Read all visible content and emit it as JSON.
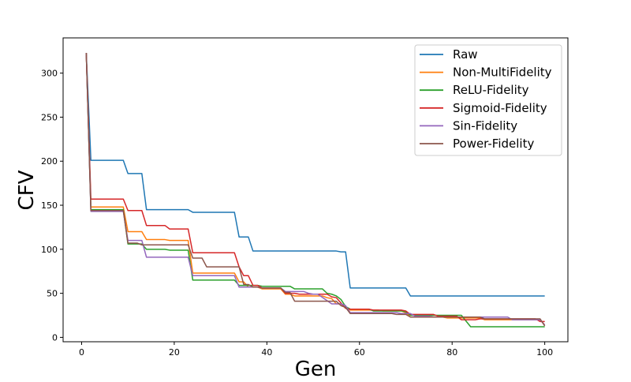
{
  "chart_data": {
    "type": "line",
    "xlabel": "Gen",
    "ylabel": "CFV",
    "xlim": [
      -4,
      105
    ],
    "ylim": [
      -5,
      340
    ],
    "xticks": [
      0,
      20,
      40,
      60,
      80,
      100
    ],
    "yticks": [
      0,
      50,
      100,
      150,
      200,
      250,
      300
    ],
    "grid": false,
    "legend_position": "top-right",
    "series": [
      {
        "name": "Raw",
        "color": "#1f77b4",
        "points": [
          [
            1,
            323
          ],
          [
            2,
            201
          ],
          [
            9,
            201
          ],
          [
            10,
            186
          ],
          [
            13,
            186
          ],
          [
            14,
            145
          ],
          [
            23,
            145
          ],
          [
            24,
            142
          ],
          [
            33,
            142
          ],
          [
            34,
            114
          ],
          [
            36,
            114
          ],
          [
            37,
            98
          ],
          [
            55,
            98
          ],
          [
            56,
            97
          ],
          [
            57,
            97
          ],
          [
            58,
            56
          ],
          [
            70,
            56
          ],
          [
            71,
            47
          ],
          [
            100,
            47
          ]
        ]
      },
      {
        "name": "Non-MultiFidelity",
        "color": "#ff7f0e",
        "points": [
          [
            1,
            323
          ],
          [
            2,
            148
          ],
          [
            9,
            148
          ],
          [
            10,
            120
          ],
          [
            13,
            120
          ],
          [
            14,
            111
          ],
          [
            18,
            111
          ],
          [
            19,
            110
          ],
          [
            23,
            110
          ],
          [
            24,
            73
          ],
          [
            33,
            73
          ],
          [
            34,
            63
          ],
          [
            35,
            63
          ],
          [
            36,
            57
          ],
          [
            38,
            57
          ],
          [
            39,
            55
          ],
          [
            43,
            55
          ],
          [
            44,
            49
          ],
          [
            45,
            49
          ],
          [
            46,
            47
          ],
          [
            52,
            47
          ],
          [
            53,
            45
          ],
          [
            54,
            44
          ],
          [
            55,
            38
          ],
          [
            56,
            38
          ],
          [
            57,
            33
          ],
          [
            58,
            31
          ],
          [
            64,
            31
          ],
          [
            65,
            30
          ],
          [
            69,
            30
          ],
          [
            70,
            28
          ],
          [
            71,
            23
          ],
          [
            78,
            23
          ],
          [
            79,
            22
          ],
          [
            86,
            22
          ],
          [
            87,
            20
          ],
          [
            99,
            20
          ],
          [
            100,
            14
          ]
        ]
      },
      {
        "name": "ReLU-Fidelity",
        "color": "#2ca02c",
        "points": [
          [
            1,
            323
          ],
          [
            2,
            145
          ],
          [
            9,
            145
          ],
          [
            10,
            106
          ],
          [
            13,
            106
          ],
          [
            14,
            100
          ],
          [
            18,
            100
          ],
          [
            19,
            99
          ],
          [
            23,
            99
          ],
          [
            24,
            65
          ],
          [
            33,
            65
          ],
          [
            34,
            59
          ],
          [
            38,
            59
          ],
          [
            39,
            58
          ],
          [
            45,
            58
          ],
          [
            46,
            55
          ],
          [
            52,
            55
          ],
          [
            53,
            50
          ],
          [
            54,
            49
          ],
          [
            55,
            47
          ],
          [
            56,
            43
          ],
          [
            57,
            35
          ],
          [
            58,
            32
          ],
          [
            62,
            32
          ],
          [
            63,
            30
          ],
          [
            69,
            30
          ],
          [
            70,
            29
          ],
          [
            71,
            25
          ],
          [
            82,
            25
          ],
          [
            84,
            12
          ],
          [
            100,
            12
          ]
        ]
      },
      {
        "name": "Sigmoid-Fidelity",
        "color": "#d62728",
        "points": [
          [
            1,
            323
          ],
          [
            2,
            157
          ],
          [
            9,
            157
          ],
          [
            10,
            144
          ],
          [
            13,
            144
          ],
          [
            14,
            127
          ],
          [
            18,
            127
          ],
          [
            19,
            123
          ],
          [
            23,
            123
          ],
          [
            24,
            96
          ],
          [
            33,
            96
          ],
          [
            34,
            80
          ],
          [
            35,
            70
          ],
          [
            36,
            70
          ],
          [
            37,
            59
          ],
          [
            38,
            59
          ],
          [
            39,
            56
          ],
          [
            43,
            56
          ],
          [
            44,
            50
          ],
          [
            46,
            50
          ],
          [
            47,
            49
          ],
          [
            53,
            49
          ],
          [
            54,
            46
          ],
          [
            55,
            45
          ],
          [
            56,
            39
          ],
          [
            57,
            33
          ],
          [
            58,
            32
          ],
          [
            62,
            32
          ],
          [
            63,
            31
          ],
          [
            69,
            31
          ],
          [
            70,
            30
          ],
          [
            71,
            26
          ],
          [
            76,
            26
          ],
          [
            77,
            24
          ],
          [
            81,
            24
          ],
          [
            82,
            20
          ],
          [
            85,
            20
          ],
          [
            86,
            21
          ],
          [
            98,
            21
          ],
          [
            99,
            18
          ],
          [
            100,
            18
          ]
        ]
      },
      {
        "name": "Sin-Fidelity",
        "color": "#9467bd",
        "points": [
          [
            1,
            323
          ],
          [
            2,
            143
          ],
          [
            9,
            143
          ],
          [
            10,
            110
          ],
          [
            13,
            110
          ],
          [
            14,
            91
          ],
          [
            23,
            91
          ],
          [
            24,
            70
          ],
          [
            33,
            70
          ],
          [
            34,
            57
          ],
          [
            38,
            57
          ],
          [
            39,
            56
          ],
          [
            43,
            56
          ],
          [
            44,
            52
          ],
          [
            48,
            52
          ],
          [
            49,
            50
          ],
          [
            50,
            49
          ],
          [
            51,
            49
          ],
          [
            54,
            38
          ],
          [
            56,
            38
          ],
          [
            57,
            36
          ],
          [
            58,
            28
          ],
          [
            68,
            28
          ],
          [
            69,
            27
          ],
          [
            71,
            27
          ],
          [
            72,
            24
          ],
          [
            75,
            24
          ],
          [
            76,
            23
          ],
          [
            92,
            23
          ],
          [
            93,
            20
          ],
          [
            99,
            20
          ],
          [
            100,
            14
          ]
        ]
      },
      {
        "name": "Power-Fidelity",
        "color": "#8c564b",
        "points": [
          [
            1,
            323
          ],
          [
            2,
            144
          ],
          [
            9,
            144
          ],
          [
            10,
            107
          ],
          [
            12,
            107
          ],
          [
            13,
            105
          ],
          [
            23,
            105
          ],
          [
            24,
            90
          ],
          [
            26,
            90
          ],
          [
            27,
            80
          ],
          [
            34,
            80
          ],
          [
            35,
            60
          ],
          [
            36,
            60
          ],
          [
            37,
            57
          ],
          [
            38,
            57
          ],
          [
            39,
            56
          ],
          [
            43,
            56
          ],
          [
            44,
            51
          ],
          [
            45,
            51
          ],
          [
            46,
            41
          ],
          [
            55,
            41
          ],
          [
            56,
            36
          ],
          [
            57,
            34
          ],
          [
            58,
            27
          ],
          [
            67,
            27
          ],
          [
            68,
            26
          ],
          [
            70,
            26
          ],
          [
            71,
            23
          ],
          [
            86,
            23
          ],
          [
            87,
            21
          ],
          [
            99,
            21
          ],
          [
            100,
            13
          ]
        ]
      }
    ]
  }
}
